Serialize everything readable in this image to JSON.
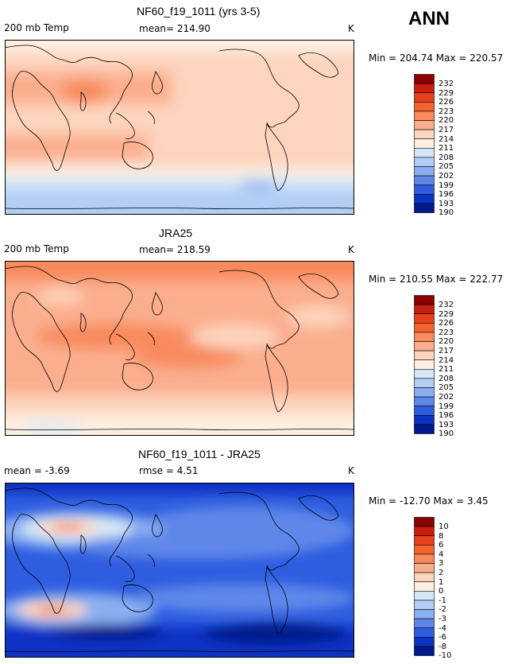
{
  "season": "ANN",
  "panels": [
    {
      "title": "NF60_f19_1011 (yrs 3-5)",
      "left_label": "200 mb Temp",
      "center_label": "mean= 214.90",
      "units": "K",
      "min_max": "Min = 204.74 Max = 220.57",
      "colorbar_labels": [
        "232",
        "229",
        "226",
        "223",
        "220",
        "217",
        "214",
        "211",
        "208",
        "205",
        "202",
        "199",
        "196",
        "193",
        "190"
      ]
    },
    {
      "title": "JRA25",
      "left_label": "200 mb Temp",
      "center_label": "mean= 218.59",
      "units": "K",
      "min_max": "Min = 210.55 Max = 222.77",
      "colorbar_labels": [
        "232",
        "229",
        "226",
        "223",
        "220",
        "217",
        "214",
        "211",
        "208",
        "205",
        "202",
        "199",
        "196",
        "193",
        "190"
      ]
    },
    {
      "title": "NF60_f19_1011 - JRA25",
      "left_label": "mean = -3.69",
      "center_label": "rmse = 4.51",
      "units": "K",
      "min_max": "Min = -12.70 Max = 3.45",
      "colorbar_labels": [
        "10",
        "8",
        "6",
        "4",
        "3",
        "2",
        "1",
        "0",
        "-1",
        "-2",
        "-3",
        "-4",
        "-6",
        "-8",
        "-10"
      ]
    }
  ],
  "palette": [
    "#8b0000",
    "#c81e0f",
    "#e8401c",
    "#f5622e",
    "#f88a5d",
    "#fbae8e",
    "#fdd4bd",
    "#fdf0e2",
    "#d6e8f8",
    "#b3cdf4",
    "#8aaff0",
    "#5f87ea",
    "#2e5de0",
    "#0a33c4",
    "#001a8c"
  ],
  "chart_data": [
    {
      "type": "heatmap",
      "title": "NF60_f19_1011 (yrs 3-5)",
      "variable": "200 mb Temp",
      "units": "K",
      "mean": 214.9,
      "min": 204.74,
      "max": 220.57,
      "levels": [
        190,
        193,
        196,
        199,
        202,
        205,
        208,
        211,
        214,
        217,
        220,
        223,
        226,
        229,
        232
      ]
    },
    {
      "type": "heatmap",
      "title": "JRA25",
      "variable": "200 mb Temp",
      "units": "K",
      "mean": 218.59,
      "min": 210.55,
      "max": 222.77,
      "levels": [
        190,
        193,
        196,
        199,
        202,
        205,
        208,
        211,
        214,
        217,
        220,
        223,
        226,
        229,
        232
      ]
    },
    {
      "type": "heatmap",
      "title": "NF60_f19_1011 - JRA25",
      "units": "K",
      "mean": -3.69,
      "rmse": 4.51,
      "min": -12.7,
      "max": 3.45,
      "levels": [
        -10,
        -8,
        -6,
        -4,
        -3,
        -2,
        -1,
        0,
        1,
        2,
        3,
        4,
        6,
        8,
        10
      ]
    }
  ]
}
